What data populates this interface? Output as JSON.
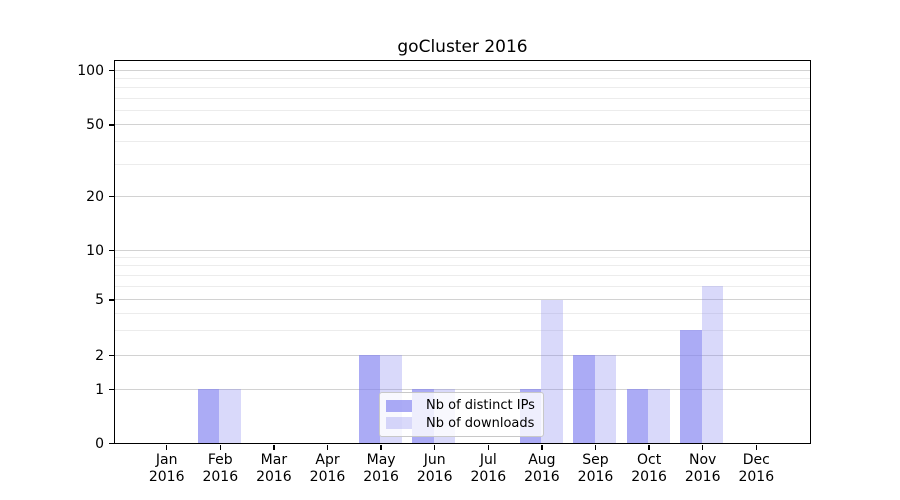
{
  "chart_data": {
    "type": "bar",
    "title": "goCluster 2016",
    "x": {
      "months": [
        "Jan",
        "Feb",
        "Mar",
        "Apr",
        "May",
        "Jun",
        "Jul",
        "Aug",
        "Sep",
        "Oct",
        "Nov",
        "Dec"
      ],
      "year": "2016"
    },
    "series": [
      {
        "name": "Nb of distinct IPs",
        "color": "rgba(128,128,240,0.66)",
        "values": [
          0,
          1,
          0,
          0,
          2,
          1,
          0,
          1,
          2,
          1,
          3,
          0
        ]
      },
      {
        "name": "Nb of downloads",
        "color": "rgba(128,128,240,0.30)",
        "values": [
          0,
          1,
          0,
          0,
          2,
          1,
          0,
          5,
          2,
          1,
          6,
          0
        ]
      }
    ],
    "y_axis": {
      "scale": "log",
      "range": [
        0,
        100
      ],
      "ticks_major": [
        0,
        1,
        2,
        5,
        10,
        20,
        50,
        100
      ],
      "ticks_minor": [
        3,
        4,
        6,
        7,
        8,
        9,
        30,
        40,
        60,
        70,
        80,
        90
      ]
    },
    "legend": {
      "position": "lower-center"
    },
    "grid": {
      "major_color": "#d2d2d2",
      "minor_color": "#ececec"
    },
    "colors": {
      "axis": "#000000",
      "text": "#000000",
      "background": "#ffffff"
    }
  }
}
